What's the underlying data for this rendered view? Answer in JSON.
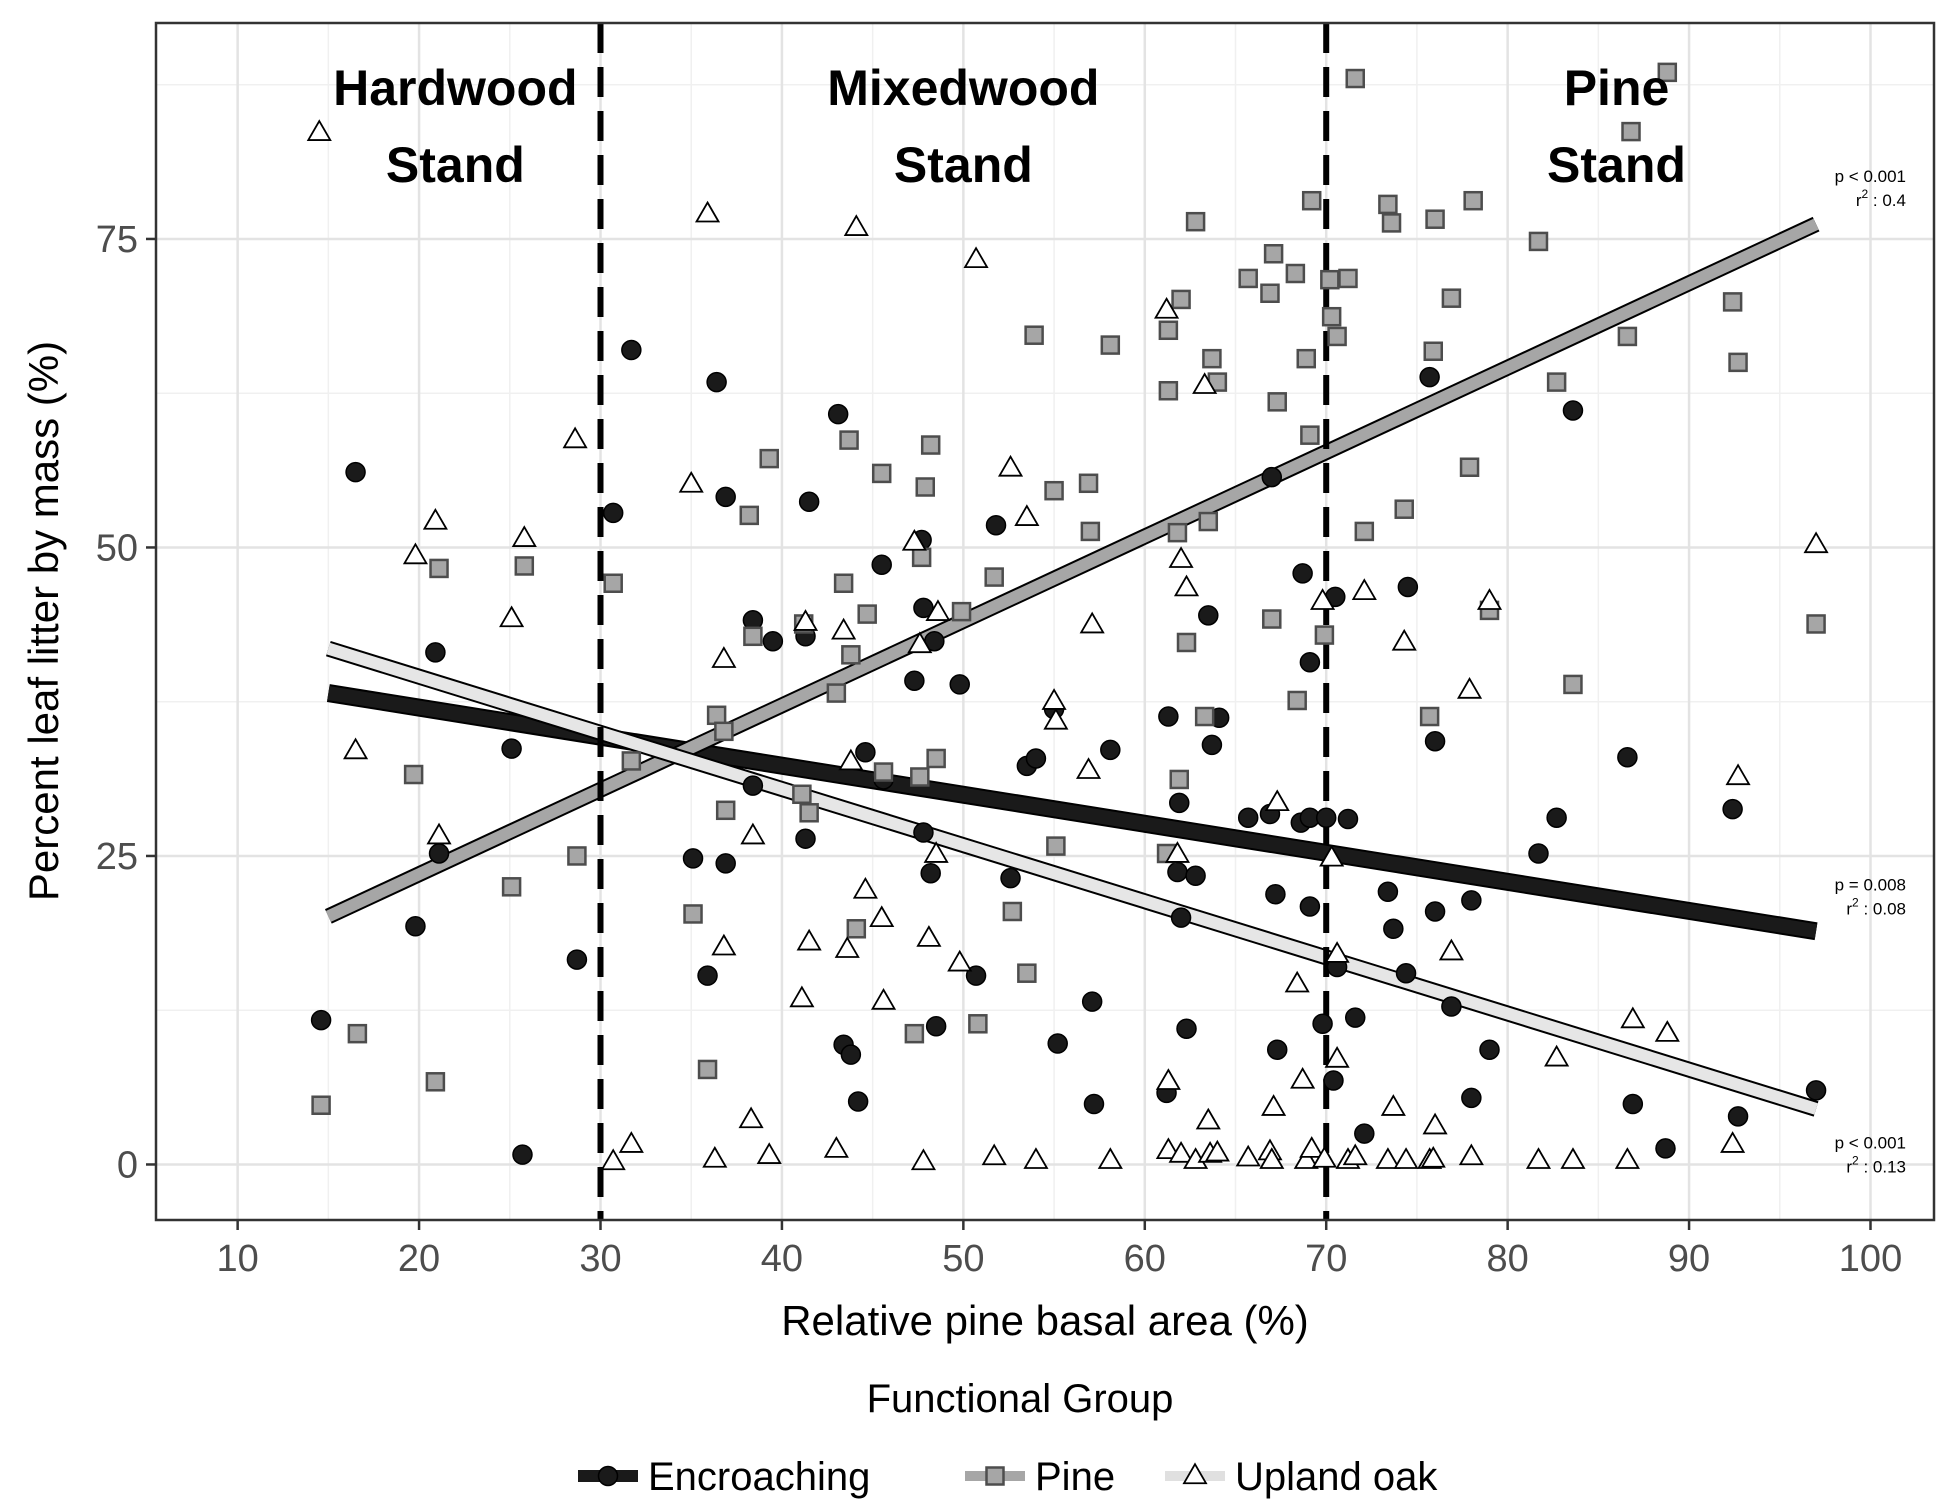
{
  "chart_data": {
    "type": "scatter",
    "xlabel": "Relative pine basal area (%)",
    "ylabel": "Percent leaf litter by mass (%)",
    "xlim": [
      5.5,
      103.5
    ],
    "ylim": [
      -4.5,
      92.5
    ],
    "x_ticks": [
      10,
      20,
      30,
      40,
      50,
      60,
      70,
      80,
      90,
      100
    ],
    "y_ticks": [
      0,
      25,
      50,
      75
    ],
    "grid": true,
    "legend": {
      "title": "Functional Group",
      "position": "bottom"
    },
    "thresholds": [
      30,
      70
    ],
    "zones": [
      {
        "line1": "Hardwood",
        "line2": "Stand",
        "x": 22
      },
      {
        "line1": "Mixedwood",
        "line2": "Stand",
        "x": 50
      },
      {
        "line1": "Pine",
        "line2": "Stand",
        "x": 86
      }
    ],
    "series": [
      {
        "name": "Encroaching",
        "marker": "circle",
        "color": "#1a1a1a",
        "fill": "#1a1a1a",
        "line_width": 14,
        "fit": {
          "x": [
            15,
            97
          ],
          "y": [
            38.2,
            18.9
          ]
        },
        "stat": {
          "p": "p = 0.008",
          "r2_value": "0.08",
          "y": 22.2
        },
        "points": [
          [
            14.6,
            11.7
          ],
          [
            16.5,
            56.1
          ],
          [
            19.8,
            19.3
          ],
          [
            20.9,
            41.5
          ],
          [
            21.1,
            25.2
          ],
          [
            25.1,
            33.7
          ],
          [
            25.7,
            0.8
          ],
          [
            28.7,
            16.6
          ],
          [
            30.7,
            52.8
          ],
          [
            31.7,
            66
          ],
          [
            35.1,
            24.8
          ],
          [
            35.9,
            15.3
          ],
          [
            36.4,
            63.4
          ],
          [
            36.9,
            54.1
          ],
          [
            36.9,
            24.4
          ],
          [
            38.4,
            30.7
          ],
          [
            38.4,
            44.1
          ],
          [
            39.5,
            42.4
          ],
          [
            41.3,
            42.8
          ],
          [
            41.3,
            26.4
          ],
          [
            41.5,
            53.7
          ],
          [
            43.1,
            60.8
          ],
          [
            43.4,
            9.7
          ],
          [
            43.8,
            8.9
          ],
          [
            44.2,
            5.1
          ],
          [
            44.6,
            33.4
          ],
          [
            45.5,
            48.6
          ],
          [
            45.6,
            31.2
          ],
          [
            47.3,
            39.2
          ],
          [
            47.7,
            50.6
          ],
          [
            47.8,
            45.1
          ],
          [
            47.8,
            26.9
          ],
          [
            48.2,
            23.6
          ],
          [
            48.4,
            42.4
          ],
          [
            48.5,
            11.2
          ],
          [
            49.8,
            38.9
          ],
          [
            50.7,
            15.3
          ],
          [
            51.8,
            51.8
          ],
          [
            52.6,
            23.2
          ],
          [
            53.5,
            32.3
          ],
          [
            54.0,
            32.9
          ],
          [
            55.0,
            36.9
          ],
          [
            55.2,
            9.8
          ],
          [
            57.1,
            13.2
          ],
          [
            57.2,
            4.9
          ],
          [
            58.1,
            33.6
          ],
          [
            61.2,
            5.8
          ],
          [
            61.3,
            36.3
          ],
          [
            61.8,
            23.7
          ],
          [
            61.9,
            29.3
          ],
          [
            62.0,
            20.0
          ],
          [
            62.3,
            11.0
          ],
          [
            62.8,
            23.4
          ],
          [
            63.5,
            44.5
          ],
          [
            63.7,
            34.0
          ],
          [
            64.1,
            36.2
          ],
          [
            65.7,
            28.1
          ],
          [
            66.9,
            28.4
          ],
          [
            67.0,
            55.7
          ],
          [
            67.2,
            21.9
          ],
          [
            67.3,
            9.3
          ],
          [
            68.6,
            27.7
          ],
          [
            68.7,
            47.9
          ],
          [
            69.1,
            28.1
          ],
          [
            69.1,
            40.7
          ],
          [
            69.1,
            20.9
          ],
          [
            69.8,
            11.4
          ],
          [
            70.0,
            28.1
          ],
          [
            70.4,
            6.8
          ],
          [
            70.5,
            46.0
          ],
          [
            70.6,
            16.0
          ],
          [
            71.2,
            28.0
          ],
          [
            71.6,
            11.9
          ],
          [
            72.1,
            2.5
          ],
          [
            73.4,
            22.1
          ],
          [
            73.7,
            19.1
          ],
          [
            74.4,
            15.5
          ],
          [
            74.5,
            46.8
          ],
          [
            75.7,
            63.8
          ],
          [
            76.0,
            34.3
          ],
          [
            76.0,
            20.5
          ],
          [
            76.9,
            12.8
          ],
          [
            78.0,
            21.4
          ],
          [
            78.0,
            5.4
          ],
          [
            79.0,
            9.3
          ],
          [
            81.7,
            25.2
          ],
          [
            82.7,
            28.1
          ],
          [
            83.6,
            61.1
          ],
          [
            86.6,
            33.0
          ],
          [
            86.9,
            4.9
          ],
          [
            88.7,
            1.3
          ],
          [
            92.4,
            28.8
          ],
          [
            92.7,
            3.9
          ],
          [
            97.0,
            6.0
          ]
        ]
      },
      {
        "name": "Pine",
        "marker": "square",
        "color": "#4d4d4d",
        "fill": "#a6a6a6",
        "line_width": 12,
        "fit": {
          "x": [
            15,
            97
          ],
          "y": [
            20.1,
            76.2
          ]
        },
        "stat": {
          "p": "p < 0.001",
          "r2_value": "0.4",
          "y": 79.6
        },
        "points": [
          [
            14.6,
            4.8
          ],
          [
            16.6,
            10.6
          ],
          [
            19.7,
            31.6
          ],
          [
            20.9,
            6.7
          ],
          [
            21.1,
            48.3
          ],
          [
            25.1,
            22.5
          ],
          [
            25.8,
            48.5
          ],
          [
            28.7,
            25.0
          ],
          [
            30.7,
            47.1
          ],
          [
            31.7,
            32.7
          ],
          [
            35.1,
            20.3
          ],
          [
            35.9,
            7.7
          ],
          [
            36.4,
            36.4
          ],
          [
            36.8,
            35.1
          ],
          [
            36.9,
            28.7
          ],
          [
            38.2,
            52.6
          ],
          [
            38.4,
            42.8
          ],
          [
            39.3,
            57.2
          ],
          [
            41.1,
            30.0
          ],
          [
            41.2,
            43.8
          ],
          [
            41.5,
            28.5
          ],
          [
            43.0,
            38.2
          ],
          [
            43.4,
            47.1
          ],
          [
            43.7,
            58.7
          ],
          [
            43.8,
            41.3
          ],
          [
            44.1,
            19.1
          ],
          [
            44.7,
            44.6
          ],
          [
            45.5,
            56.0
          ],
          [
            45.6,
            31.8
          ],
          [
            47.3,
            10.6
          ],
          [
            47.6,
            31.4
          ],
          [
            47.7,
            49.2
          ],
          [
            47.9,
            54.9
          ],
          [
            48.2,
            58.3
          ],
          [
            48.5,
            32.9
          ],
          [
            49.9,
            44.8
          ],
          [
            50.8,
            11.4
          ],
          [
            51.7,
            47.6
          ],
          [
            52.7,
            20.5
          ],
          [
            53.5,
            15.5
          ],
          [
            53.9,
            67.2
          ],
          [
            55.0,
            54.6
          ],
          [
            55.1,
            25.8
          ],
          [
            56.9,
            55.2
          ],
          [
            57.0,
            51.3
          ],
          [
            58.1,
            66.4
          ],
          [
            61.2,
            25.2
          ],
          [
            61.3,
            67.6
          ],
          [
            61.3,
            62.7
          ],
          [
            61.8,
            51.2
          ],
          [
            61.9,
            31.2
          ],
          [
            62.0,
            70.1
          ],
          [
            62.3,
            42.3
          ],
          [
            62.8,
            76.4
          ],
          [
            63.3,
            36.3
          ],
          [
            63.5,
            52.1
          ],
          [
            63.7,
            65.3
          ],
          [
            64.0,
            63.4
          ],
          [
            65.7,
            71.8
          ],
          [
            66.9,
            70.6
          ],
          [
            67.0,
            44.2
          ],
          [
            67.1,
            73.8
          ],
          [
            67.3,
            61.8
          ],
          [
            68.3,
            72.2
          ],
          [
            68.4,
            37.6
          ],
          [
            68.9,
            65.3
          ],
          [
            69.1,
            59.1
          ],
          [
            69.2,
            78.1
          ],
          [
            69.9,
            42.9
          ],
          [
            70.2,
            71.7
          ],
          [
            70.3,
            68.7
          ],
          [
            70.6,
            67.1
          ],
          [
            71.2,
            71.8
          ],
          [
            71.6,
            88.0
          ],
          [
            72.1,
            51.3
          ],
          [
            73.4,
            77.8
          ],
          [
            73.6,
            76.3
          ],
          [
            74.3,
            53.1
          ],
          [
            75.7,
            36.3
          ],
          [
            75.9,
            65.9
          ],
          [
            76.0,
            76.6
          ],
          [
            76.9,
            70.2
          ],
          [
            77.9,
            56.5
          ],
          [
            78.1,
            78.1
          ],
          [
            79.0,
            44.9
          ],
          [
            81.7,
            74.8
          ],
          [
            82.7,
            63.4
          ],
          [
            83.6,
            38.9
          ],
          [
            86.6,
            67.1
          ],
          [
            86.8,
            83.7
          ],
          [
            88.8,
            88.5
          ],
          [
            92.4,
            69.9
          ],
          [
            92.7,
            65.0
          ],
          [
            97.0,
            43.8
          ]
        ]
      },
      {
        "name": "Upland oak",
        "marker": "triangle",
        "color": "#000000",
        "fill": "#ffffff",
        "line_width": 12,
        "fit": {
          "x": [
            15,
            97
          ],
          "y": [
            41.8,
            4.5
          ]
        },
        "stat": {
          "p": "p < 0.001",
          "r2_value": "0.13",
          "y": 1.3
        },
        "points": [
          [
            14.5,
            83.6
          ],
          [
            16.5,
            33.5
          ],
          [
            19.8,
            49.3
          ],
          [
            20.9,
            52.1
          ],
          [
            21.1,
            26.6
          ],
          [
            25.1,
            44.2
          ],
          [
            25.8,
            50.7
          ],
          [
            28.6,
            58.7
          ],
          [
            30.7,
            0.2
          ],
          [
            31.7,
            1.6
          ],
          [
            35.0,
            55.1
          ],
          [
            35.9,
            77.0
          ],
          [
            36.3,
            0.4
          ],
          [
            36.8,
            40.9
          ],
          [
            36.8,
            17.6
          ],
          [
            38.3,
            3.6
          ],
          [
            38.4,
            26.6
          ],
          [
            39.3,
            0.7
          ],
          [
            41.1,
            13.4
          ],
          [
            41.3,
            43.9
          ],
          [
            41.5,
            18.0
          ],
          [
            43.0,
            1.2
          ],
          [
            43.4,
            43.2
          ],
          [
            43.6,
            17.4
          ],
          [
            43.8,
            32.6
          ],
          [
            44.1,
            75.9
          ],
          [
            44.6,
            22.2
          ],
          [
            45.5,
            19.9
          ],
          [
            45.6,
            13.2
          ],
          [
            47.3,
            50.4
          ],
          [
            47.6,
            42.1
          ],
          [
            47.8,
            0.2
          ],
          [
            48.1,
            18.3
          ],
          [
            48.5,
            25.1
          ],
          [
            48.6,
            44.7
          ],
          [
            49.8,
            16.3
          ],
          [
            50.7,
            73.3
          ],
          [
            51.7,
            0.6
          ],
          [
            52.6,
            56.4
          ],
          [
            53.5,
            52.4
          ],
          [
            54.0,
            0.3
          ],
          [
            55.0,
            37.5
          ],
          [
            55.1,
            35.9
          ],
          [
            56.9,
            31.9
          ],
          [
            57.1,
            43.7
          ],
          [
            58.1,
            0.3
          ],
          [
            61.2,
            69.2
          ],
          [
            61.3,
            6.7
          ],
          [
            61.3,
            1.1
          ],
          [
            61.8,
            25.1
          ],
          [
            62.0,
            49.0
          ],
          [
            62.0,
            0.8
          ],
          [
            62.3,
            46.7
          ],
          [
            62.8,
            0.3
          ],
          [
            63.3,
            63.1
          ],
          [
            63.5,
            3.5
          ],
          [
            63.6,
            0.8
          ],
          [
            64.0,
            0.9
          ],
          [
            65.7,
            0.5
          ],
          [
            66.9,
            1.0
          ],
          [
            67.0,
            0.3
          ],
          [
            67.1,
            4.6
          ],
          [
            67.3,
            29.3
          ],
          [
            68.4,
            14.6
          ],
          [
            68.7,
            6.8
          ],
          [
            68.9,
            0.3
          ],
          [
            69.2,
            1.2
          ],
          [
            69.8,
            45.6
          ],
          [
            69.9,
            0.4
          ],
          [
            70.3,
            24.8
          ],
          [
            70.6,
            17.0
          ],
          [
            70.6,
            8.5
          ],
          [
            71.2,
            0.3
          ],
          [
            71.6,
            0.6
          ],
          [
            72.1,
            46.4
          ],
          [
            73.4,
            0.3
          ],
          [
            73.7,
            4.6
          ],
          [
            74.3,
            42.3
          ],
          [
            74.4,
            0.3
          ],
          [
            75.7,
            0.3
          ],
          [
            75.9,
            0.4
          ],
          [
            76.0,
            3.1
          ],
          [
            76.9,
            17.2
          ],
          [
            77.9,
            38.4
          ],
          [
            78.0,
            0.6
          ],
          [
            79.0,
            45.6
          ],
          [
            81.7,
            0.3
          ],
          [
            82.7,
            8.6
          ],
          [
            83.6,
            0.3
          ],
          [
            86.6,
            0.3
          ],
          [
            86.9,
            11.7
          ],
          [
            88.8,
            10.6
          ],
          [
            92.4,
            1.6
          ],
          [
            92.7,
            31.4
          ],
          [
            97.0,
            50.2
          ]
        ]
      }
    ]
  }
}
